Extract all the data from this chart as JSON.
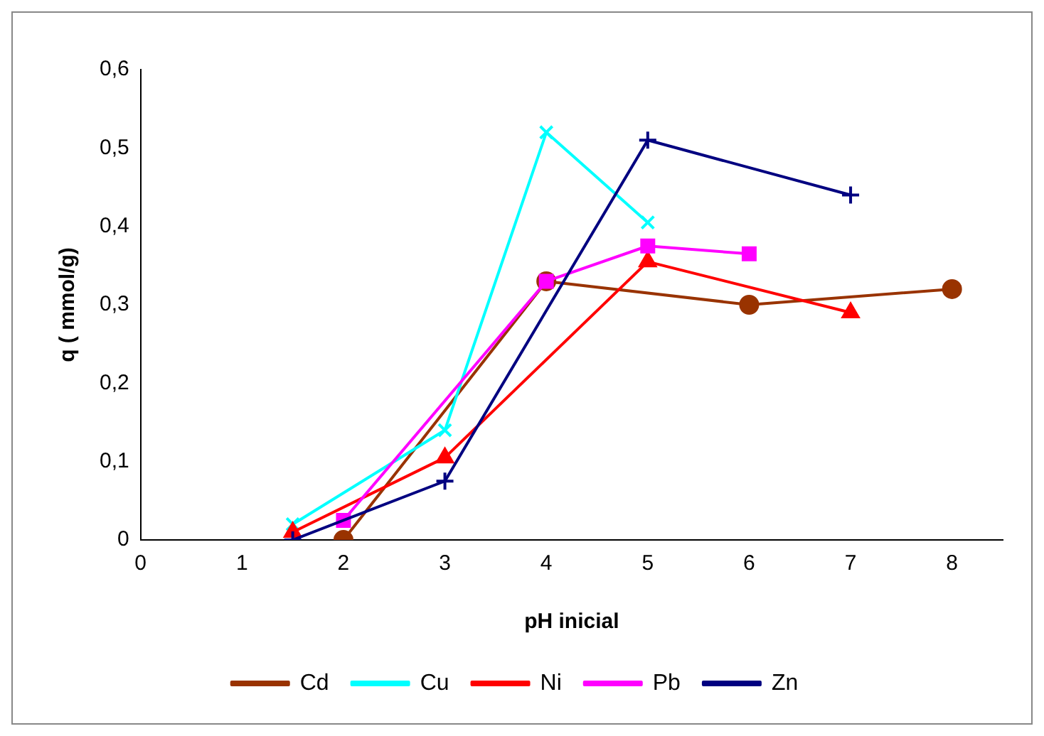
{
  "chart_data": {
    "type": "line",
    "xlabel": "pH inicial",
    "ylabel": "q ( mmol/g)",
    "xlim": [
      0,
      8.5
    ],
    "xticks": [
      0,
      1,
      2,
      3,
      4,
      5,
      6,
      7,
      8
    ],
    "ylim": [
      0,
      0.6
    ],
    "yticks": [
      {
        "value": 0,
        "label": "0"
      },
      {
        "value": 0.1,
        "label": "0,1"
      },
      {
        "value": 0.2,
        "label": "0,2"
      },
      {
        "value": 0.3,
        "label": "0,3"
      },
      {
        "value": 0.4,
        "label": "0,4"
      },
      {
        "value": 0.5,
        "label": "0,5"
      },
      {
        "value": 0.6,
        "label": "0,6"
      }
    ],
    "grid": false,
    "legend": "bottom",
    "line_style": "solid",
    "series": [
      {
        "name": "Cd",
        "color": "#993300",
        "marker": "circle",
        "x": [
          2,
          4,
          6,
          8
        ],
        "values": [
          0,
          0.33,
          0.3,
          0.32
        ]
      },
      {
        "name": "Cu",
        "color": "#00ffff",
        "marker": "cross",
        "x": [
          1.5,
          3,
          4,
          5
        ],
        "values": [
          0.02,
          0.14,
          0.52,
          0.405
        ]
      },
      {
        "name": "Ni",
        "color": "#ff0000",
        "marker": "triangle",
        "x": [
          1.5,
          3,
          5,
          7
        ],
        "values": [
          0.01,
          0.105,
          0.355,
          0.29
        ]
      },
      {
        "name": "Pb",
        "color": "#ff00ff",
        "marker": "square",
        "x": [
          2,
          4,
          5,
          6
        ],
        "values": [
          0.025,
          0.33,
          0.375,
          0.365
        ]
      },
      {
        "name": "Zn",
        "color": "#000080",
        "marker": "plus",
        "x": [
          1.5,
          3,
          5,
          7
        ],
        "values": [
          0,
          0.075,
          0.51,
          0.44
        ]
      }
    ]
  }
}
